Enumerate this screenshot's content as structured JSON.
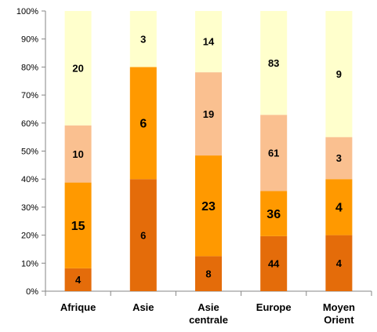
{
  "chart_data": {
    "type": "bar",
    "stacked": true,
    "normalized": true,
    "title": "",
    "xlabel": "",
    "ylabel": "",
    "ylim": [
      0,
      100
    ],
    "y_ticks": [
      "0%",
      "10%",
      "20%",
      "30%",
      "40%",
      "50%",
      "60%",
      "70%",
      "80%",
      "90%",
      "100%"
    ],
    "categories": [
      [
        "Afrique"
      ],
      [
        "Asie"
      ],
      [
        "Asie",
        "centrale"
      ],
      [
        "Europe"
      ],
      [
        "Moyen",
        "Orient"
      ]
    ],
    "grid": false,
    "legend": "none",
    "series": [
      {
        "color": "#E46C0A",
        "values": [
          4,
          6,
          8,
          44,
          4
        ],
        "label_size": "small"
      },
      {
        "color": "#FF9900",
        "values": [
          15,
          6,
          23,
          36,
          4
        ],
        "label_size": "large"
      },
      {
        "color": "#FAC090",
        "values": [
          10,
          0,
          19,
          61,
          3
        ],
        "label_size": "small"
      },
      {
        "color": "#FFFFCC",
        "values": [
          20,
          3,
          14,
          83,
          9
        ],
        "label_size": "small"
      }
    ]
  }
}
